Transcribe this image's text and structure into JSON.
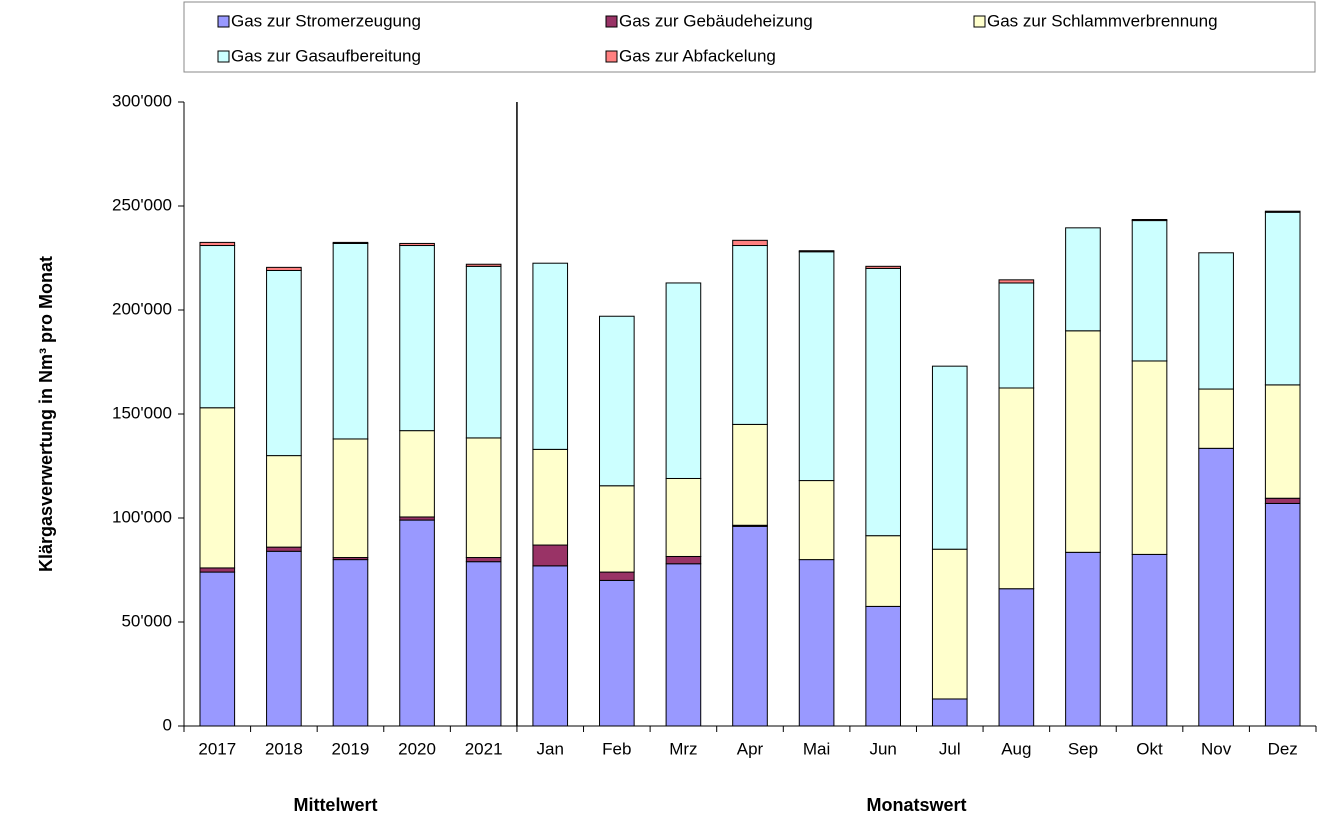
{
  "chart_data": {
    "type": "stacked_bar",
    "y_label": "Klärgasverwertung in Nm³ pro Monat",
    "group_labels": [
      "Mittelwert",
      "Monatswert"
    ],
    "categories": [
      "2017",
      "2018",
      "2019",
      "2020",
      "2021",
      "Jan",
      "Feb",
      "Mrz",
      "Apr",
      "Mai",
      "Jun",
      "Jul",
      "Aug",
      "Sep",
      "Okt",
      "Nov",
      "Dez"
    ],
    "series": [
      {
        "name": "Gas zur Stromerzeugung",
        "color": "#9999ff",
        "values": [
          74000,
          84000,
          80000,
          99000,
          79000,
          77000,
          70000,
          78000,
          96000,
          80000,
          57500,
          13000,
          66000,
          83500,
          82500,
          133500,
          107000
        ]
      },
      {
        "name": "Gas zur Gebäudeheizung",
        "color": "#993366",
        "values": [
          2000,
          2000,
          1000,
          1500,
          2000,
          10000,
          4000,
          3500,
          500,
          0,
          0,
          0,
          0,
          0,
          0,
          0,
          2500
        ]
      },
      {
        "name": "Gas zur Schlammverbrennung",
        "color": "#ffffcc",
        "values": [
          77000,
          44000,
          57000,
          41500,
          57500,
          46000,
          41500,
          37500,
          48500,
          38000,
          34000,
          72000,
          96500,
          106500,
          93000,
          28500,
          54500
        ]
      },
      {
        "name": "Gas zur Gasaufbereitung",
        "color": "#ccffff",
        "values": [
          78000,
          89000,
          94000,
          89000,
          82500,
          89500,
          81500,
          94000,
          86000,
          110000,
          128500,
          88000,
          50500,
          49500,
          67500,
          65500,
          83000
        ]
      },
      {
        "name": "Gas zur Abfackelung",
        "color": "#ff8080",
        "values": [
          1500,
          1500,
          500,
          1000,
          1000,
          0,
          0,
          0,
          2500,
          500,
          1000,
          0,
          1500,
          0,
          500,
          0,
          500
        ]
      }
    ],
    "ylim": [
      0,
      300000
    ],
    "yticks": [
      0,
      {
        "value": 50000,
        "label": "50'000"
      },
      {
        "value": 100000,
        "label": "100'000"
      },
      {
        "value": 150000,
        "label": "150'000"
      },
      {
        "value": 200000,
        "label": "200'000"
      },
      {
        "value": 250000,
        "label": "250'000"
      },
      {
        "value": 300000,
        "label": "300'000"
      }
    ],
    "grid": false
  }
}
